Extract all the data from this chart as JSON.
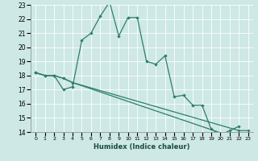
{
  "xlabel": "Humidex (Indice chaleur)",
  "xlim": [
    -0.5,
    23.5
  ],
  "ylim": [
    14,
    23
  ],
  "xticks": [
    0,
    1,
    2,
    3,
    4,
    5,
    6,
    7,
    8,
    9,
    10,
    11,
    12,
    13,
    14,
    15,
    16,
    17,
    18,
    19,
    20,
    21,
    22,
    23
  ],
  "yticks": [
    14,
    15,
    16,
    17,
    18,
    19,
    20,
    21,
    22,
    23
  ],
  "background_color": "#cde8e5",
  "grid_color": "#ffffff",
  "line_color": "#2e7d6e",
  "line1_x": [
    0,
    1,
    2,
    3,
    4,
    5,
    6,
    7,
    8,
    9,
    10,
    11,
    12,
    13,
    14,
    15,
    16,
    17,
    18,
    19,
    20,
    21,
    22
  ],
  "line1_y": [
    18.2,
    18.0,
    18.0,
    17.0,
    17.2,
    20.5,
    21.0,
    22.2,
    23.2,
    20.8,
    22.1,
    22.1,
    19.0,
    18.8,
    19.4,
    16.5,
    16.6,
    15.9,
    15.9,
    14.2,
    13.8,
    14.1,
    14.4
  ],
  "line2_x": [
    0,
    1,
    2,
    3,
    4,
    22,
    23
  ],
  "line2_y": [
    18.2,
    18.0,
    18.0,
    17.8,
    17.5,
    14.1,
    14.1
  ],
  "line3_x": [
    0,
    1,
    2,
    3,
    4,
    22,
    23
  ],
  "line3_y": [
    18.2,
    18.0,
    18.0,
    17.8,
    17.5,
    13.5,
    13.4
  ]
}
